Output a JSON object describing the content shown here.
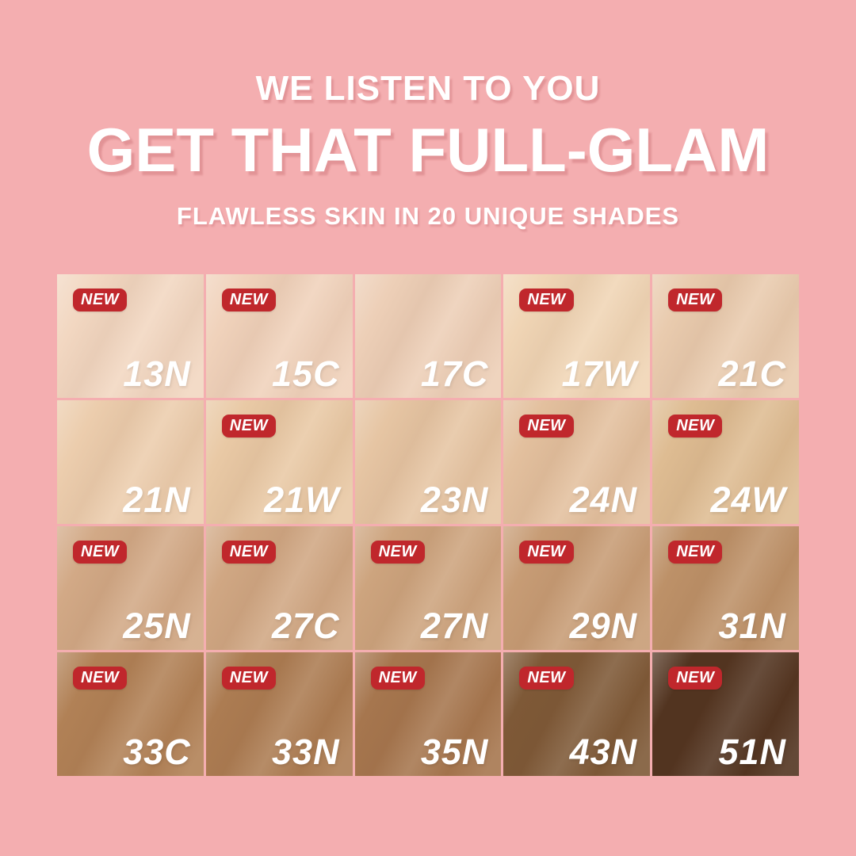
{
  "page": {
    "background_color": "#f4aeb0"
  },
  "header": {
    "line1": "WE LISTEN TO YOU",
    "line2": "GET THAT FULL-GLAM",
    "line3": "FLAWLESS SKIN IN 20 UNIQUE SHADES"
  },
  "badge": {
    "label": "NEW",
    "color": "#c0272c"
  },
  "grid": {
    "rows": 4,
    "cols": 5,
    "shade_count": 20,
    "shades": [
      {
        "code": "13N",
        "new": true,
        "color": "#f2d7c1"
      },
      {
        "code": "15C",
        "new": true,
        "color": "#f0d2bb"
      },
      {
        "code": "17C",
        "new": false,
        "color": "#edcfb7"
      },
      {
        "code": "17W",
        "new": true,
        "color": "#f0d5b5"
      },
      {
        "code": "21C",
        "new": true,
        "color": "#e9cbae"
      },
      {
        "code": "21N",
        "new": false,
        "color": "#eccdad"
      },
      {
        "code": "21W",
        "new": true,
        "color": "#e9c9a5"
      },
      {
        "code": "23N",
        "new": false,
        "color": "#e6c5a3"
      },
      {
        "code": "24N",
        "new": true,
        "color": "#e3c09e"
      },
      {
        "code": "24W",
        "new": true,
        "color": "#debc92"
      },
      {
        "code": "25N",
        "new": true,
        "color": "#d2a986"
      },
      {
        "code": "27C",
        "new": true,
        "color": "#d0a783"
      },
      {
        "code": "27N",
        "new": true,
        "color": "#cda47e"
      },
      {
        "code": "29N",
        "new": true,
        "color": "#c79c75"
      },
      {
        "code": "31N",
        "new": true,
        "color": "#bd9168"
      },
      {
        "code": "33C",
        "new": true,
        "color": "#b18156"
      },
      {
        "code": "33N",
        "new": true,
        "color": "#ac7c52"
      },
      {
        "code": "35N",
        "new": true,
        "color": "#a6764e"
      },
      {
        "code": "43N",
        "new": true,
        "color": "#7e5937"
      },
      {
        "code": "51N",
        "new": true,
        "color": "#523420"
      }
    ]
  }
}
